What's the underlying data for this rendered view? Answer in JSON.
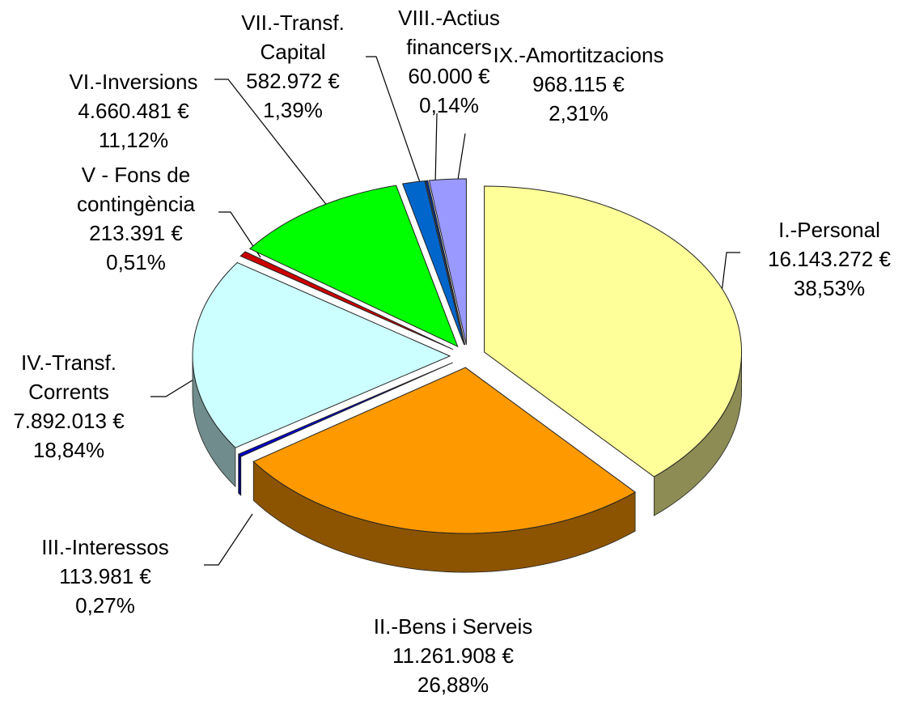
{
  "chart_data": {
    "type": "pie3d",
    "categories": [
      "I.-Personal",
      "II.-Bens i Serveis",
      "III.-Interessos",
      "IV.-Transf. Corrents",
      "V - Fons de contingència",
      "VI.-Inversions",
      "VII.-Transf. Capital",
      "VIII.-Actius financers",
      "IX.-Amortitzacions"
    ],
    "values": [
      16143272,
      11261908,
      113981,
      7892013,
      213391,
      4660481,
      582972,
      60000,
      968115
    ],
    "value_labels": [
      "16.143.272 €",
      "11.261.908 €",
      "113.981 €",
      "7.892.013 €",
      "213.391 €",
      "4.660.481 €",
      "582.972 €",
      "60.000 €",
      "968.115 €"
    ],
    "percent_labels": [
      "38,53%",
      "26,88%",
      "0,27%",
      "18,84%",
      "0,51%",
      "11,12%",
      "1,39%",
      "0,14%",
      "2,31%"
    ],
    "colors": [
      "#ffff99",
      "#ff9900",
      "#0000cc",
      "#ccffff",
      "#cc0000",
      "#00ff00",
      "#0066cc",
      "#003399",
      "#9999ff"
    ],
    "start_angle": 0,
    "direction": "clockwise",
    "exploded": true
  }
}
